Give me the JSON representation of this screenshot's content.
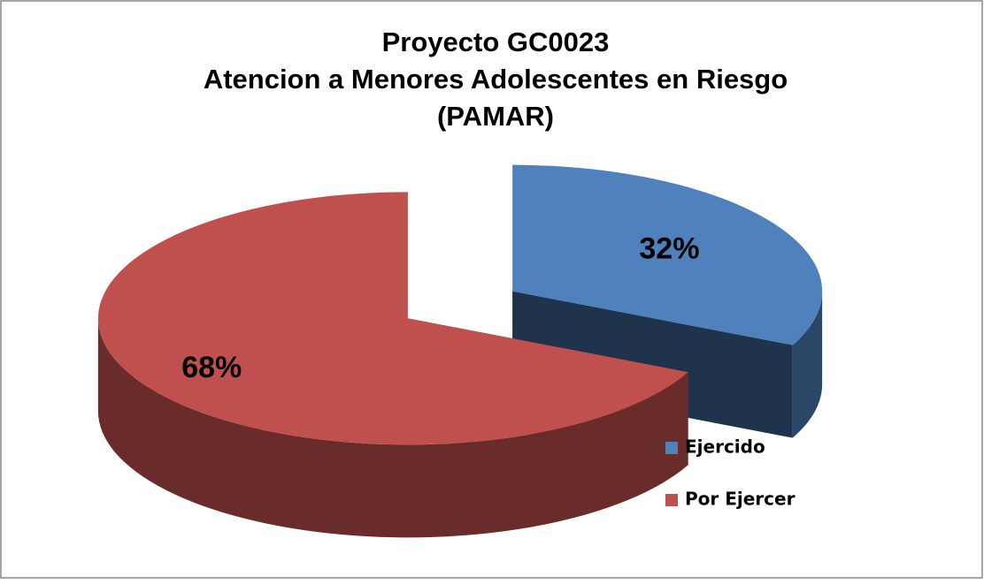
{
  "chart_data": {
    "type": "pie",
    "title": [
      "Proyecto GC0023",
      "Atencion a Menores Adolescentes en Riesgo",
      "(PAMAR)"
    ],
    "categories": [
      "Ejercido",
      "Por Ejercer"
    ],
    "values": [
      32,
      68
    ],
    "value_labels": [
      "32%",
      "68%"
    ],
    "colors": [
      "#4f81bd",
      "#c0504d"
    ],
    "legend": "right"
  }
}
